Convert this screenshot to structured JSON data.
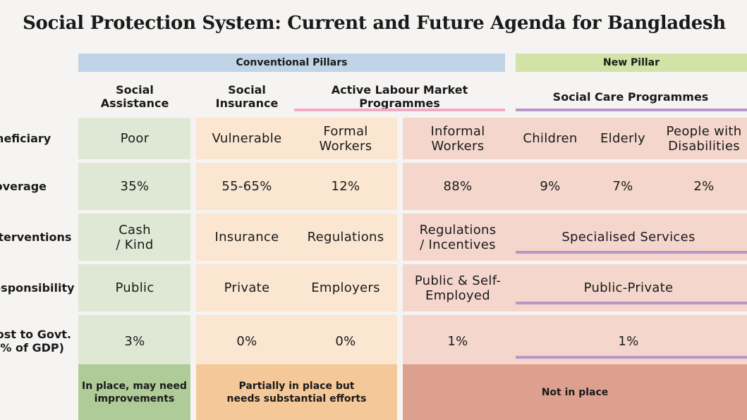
{
  "title": "Social Protection System: Current and Future Agenda for Bangladesh",
  "pillars": {
    "conventional": "Conventional Pillars",
    "new": "New Pillar"
  },
  "headers": {
    "social_assistance": "Social\nAssistance",
    "social_insurance": "Social\nInsurance",
    "almp": "Active Labour Market Programmes",
    "social_care": "Social Care Programmes"
  },
  "row_labels": {
    "beneficiary": "Beneficiary",
    "coverage": "Coverage",
    "interventions": "Interventions",
    "responsibility": "Responsibility",
    "cost": "Cost to Govt.\n(% of GDP)"
  },
  "rows": {
    "beneficiary": [
      "Poor",
      "Vulnerable",
      "Formal\nWorkers",
      "Informal\nWorkers",
      "Children",
      "Elderly",
      "People with\nDisabilities"
    ],
    "coverage": [
      "35%",
      "55-65%",
      "12%",
      "88%",
      "9%",
      "7%",
      "2%"
    ],
    "interventions": [
      "Cash\n/ Kind",
      "Insurance",
      "Regulations",
      "Regulations\n/ Incentives",
      "Specialised Services"
    ],
    "responsibility": [
      "Public",
      "Private",
      "Employers",
      "Public & Self-\nEmployed",
      "Public-Private"
    ],
    "cost": [
      "3%",
      "0%",
      "0%",
      "1%",
      "1%"
    ]
  },
  "status": {
    "green": "In place, may need\nimprovements",
    "orange": "Partially in place but\nneeds substantial efforts",
    "red": "Not in place"
  },
  "colors": {
    "conventional_bar": "#bfd4e6",
    "new_bar": "#d3e2a6",
    "green_cell": "#dfe8d4",
    "orange_cell": "#fae6d1",
    "red_cell": "#f4d6cc",
    "green_status": "#aecb98",
    "orange_status": "#f5c899",
    "red_status": "#dea08e",
    "pink_line": "#f2a9c5",
    "purple_line": "#b996c6"
  }
}
